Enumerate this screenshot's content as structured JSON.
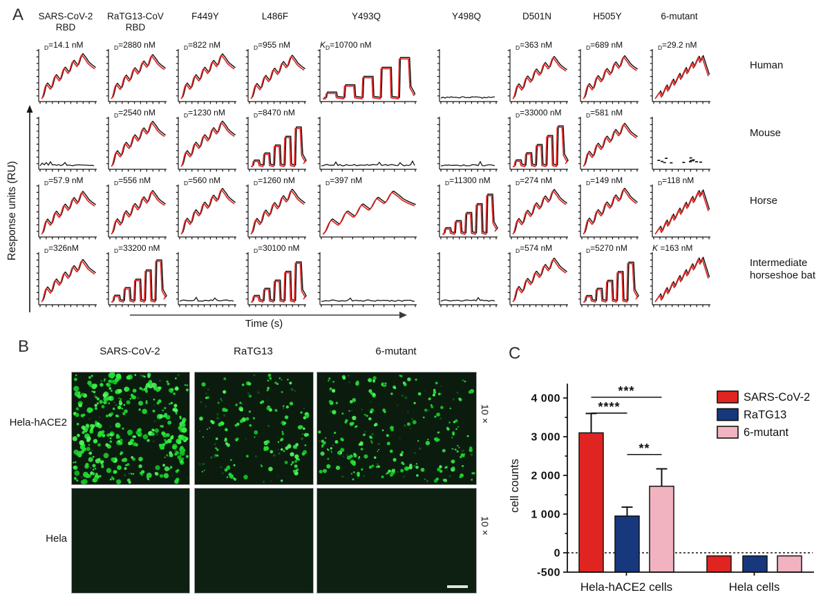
{
  "panel_a": {
    "label": "A",
    "y_axis_label": "Response units (RU)",
    "x_axis_label": "Time (s)",
    "columns": [
      "SARS-CoV-2\nRBD",
      "RaTG13-CoV\nRBD",
      "F449Y",
      "L486F",
      "Y493Q",
      "Y498Q",
      "D501N",
      "H505Y",
      "6-mutant"
    ],
    "rows": [
      "Human",
      "Mouse",
      "Horse",
      "Intermediate horseshoe bat"
    ],
    "curve_colors": {
      "fit": "#e32422",
      "data": "#151515"
    },
    "cells": [
      [
        {
          "k": "",
          "d": "D",
          "v": "=14.1 nM",
          "curve": "assoc"
        },
        {
          "k": "",
          "d": "D",
          "v": "=2880 nM",
          "curve": "assoc"
        },
        {
          "k": "",
          "d": "D",
          "v": "=822 nM",
          "curve": "assoc"
        },
        {
          "k": "",
          "d": "D",
          "v": "=955 nM",
          "curve": "assoc"
        },
        {
          "k": "K",
          "d": "D",
          "v": "=10700 nM",
          "curve": "pulse"
        },
        {
          "k": "",
          "d": "",
          "v": "",
          "curve": "flat"
        },
        {
          "k": "",
          "d": "D",
          "v": "=363 nM",
          "curve": "assoc"
        },
        {
          "k": "",
          "d": "D",
          "v": "=689 nM",
          "curve": "assoc"
        },
        {
          "k": "",
          "d": "D",
          "v": "=29.2 nM",
          "curve": "spike"
        }
      ],
      [
        {
          "k": "",
          "d": "",
          "v": "",
          "curve": "flat"
        },
        {
          "k": "",
          "d": "D",
          "v": "=2540 nM",
          "curve": "assoc"
        },
        {
          "k": "",
          "d": "D",
          "v": "=1230 nM",
          "curve": "assoc"
        },
        {
          "k": "",
          "d": "D",
          "v": "=8470 nM",
          "curve": "pulse"
        },
        {
          "k": "",
          "d": "",
          "v": "",
          "curve": "flat"
        },
        {
          "k": "",
          "d": "",
          "v": "",
          "curve": "flat"
        },
        {
          "k": "",
          "d": "D",
          "v": "=33000 nM",
          "curve": "pulse"
        },
        {
          "k": "",
          "d": "D",
          "v": "=581 nM",
          "curve": "assoc"
        },
        {
          "k": "",
          "d": "",
          "v": "",
          "curve": "dots"
        }
      ],
      [
        {
          "k": "",
          "d": "D",
          "v": "=57.9 nM",
          "curve": "assoc"
        },
        {
          "k": "",
          "d": "D",
          "v": "=556 nM",
          "curve": "assoc"
        },
        {
          "k": "",
          "d": "D",
          "v": "=560 nM",
          "curve": "assoc"
        },
        {
          "k": "",
          "d": "D",
          "v": "=1260 nM",
          "curve": "assoc"
        },
        {
          "k": "",
          "d": "D",
          "v": "=397 nM",
          "curve": "assoc"
        },
        {
          "k": "",
          "d": "D",
          "v": "=11300 nM",
          "curve": "pulse"
        },
        {
          "k": "",
          "d": "D",
          "v": "=274 nM",
          "curve": "assoc"
        },
        {
          "k": "",
          "d": "D",
          "v": "=149 nM",
          "curve": "assoc"
        },
        {
          "k": "",
          "d": "D",
          "v": "=118 nM",
          "curve": "spike"
        }
      ],
      [
        {
          "k": "",
          "d": "D",
          "v": "=326nM",
          "curve": "assoc"
        },
        {
          "k": "",
          "d": "D",
          "v": "=33200 nM",
          "curve": "pulse"
        },
        {
          "k": "",
          "d": "",
          "v": "",
          "curve": "flat"
        },
        {
          "k": "",
          "d": "D",
          "v": "=30100 nM",
          "curve": "pulse"
        },
        {
          "k": "",
          "d": "",
          "v": "",
          "curve": "flat"
        },
        {
          "k": "",
          "d": "",
          "v": "",
          "curve": "flat"
        },
        {
          "k": "",
          "d": "D",
          "v": "=574 nM",
          "curve": "assoc"
        },
        {
          "k": "",
          "d": "D",
          "v": "=5270 nM",
          "curve": "pulse"
        },
        {
          "k": "K",
          "d": "",
          "v": " =163 nM",
          "curve": "spike"
        }
      ]
    ]
  },
  "panel_b": {
    "label": "B",
    "columns": [
      "SARS-CoV-2",
      "RaTG13",
      "6-mutant"
    ],
    "row_labels": [
      "Hela-hACE2",
      "Hela"
    ],
    "magnification": "10×",
    "images": [
      [
        {
          "density": "high",
          "count": 250
        },
        {
          "density": "low",
          "count": 95
        },
        {
          "density": "medium",
          "count": 150
        }
      ],
      [
        {
          "density": "none",
          "count": 0
        },
        {
          "density": "none",
          "count": 0
        },
        {
          "density": "none",
          "count": 0
        }
      ]
    ],
    "scale_bar": true
  },
  "panel_c": {
    "label": "C"
  },
  "chart_data": {
    "type": "bar",
    "panel": "C",
    "categories": [
      "Hela-hACE2 cells",
      "Hela cells"
    ],
    "series": [
      {
        "name": "SARS-CoV-2",
        "color": "#e02422",
        "values": [
          3100,
          -80
        ],
        "errors": [
          500,
          0
        ]
      },
      {
        "name": "RaTG13",
        "color": "#17387d",
        "values": [
          950,
          -80
        ],
        "errors": [
          230,
          0
        ]
      },
      {
        "name": "6-mutant",
        "color": "#f2b3c1",
        "values": [
          1720,
          -80
        ],
        "errors": [
          450,
          0
        ]
      }
    ],
    "ylabel": "cell counts",
    "yticks": [
      {
        "value": 4000,
        "label": "4 000"
      },
      {
        "value": 3000,
        "label": "3 000"
      },
      {
        "value": 2000,
        "label": "2 000"
      },
      {
        "value": 1000,
        "label": "1 000"
      },
      {
        "value": 0,
        "label": "0"
      },
      {
        "value": -500,
        "label": "-500"
      }
    ],
    "ylim": [
      -500,
      4300
    ],
    "bar_baseline": -500,
    "zero_line": "dashed",
    "legend_position": "top-right",
    "significance": [
      {
        "label": "***",
        "series_a": 0,
        "series_b": 2,
        "group": 0,
        "y": 4020
      },
      {
        "label": "****",
        "series_a": 0,
        "series_b": 1,
        "group": 0,
        "y": 3610
      },
      {
        "label": "**",
        "series_a": 1,
        "series_b": 2,
        "group": 0,
        "y": 2540
      }
    ]
  }
}
